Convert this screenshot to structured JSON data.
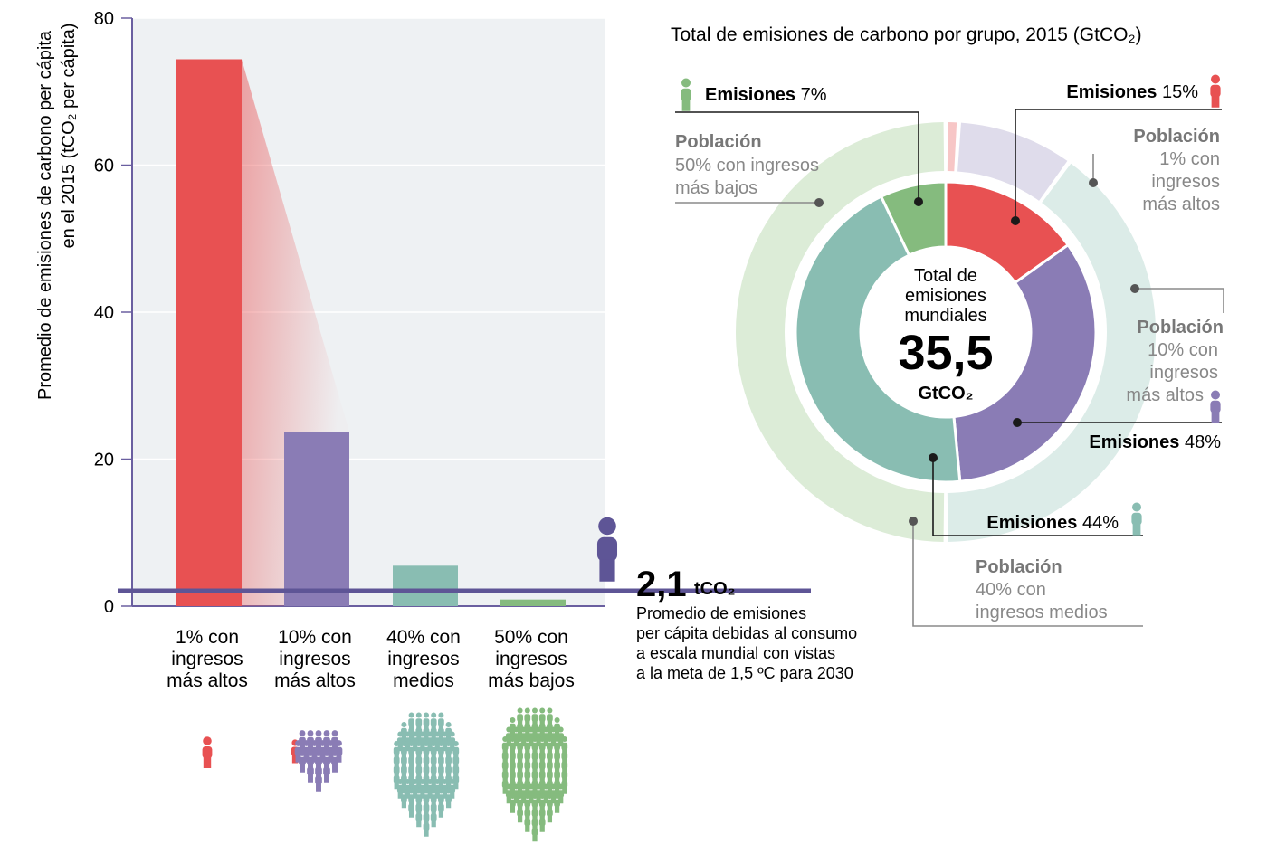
{
  "bar_chart": {
    "ylabel_line1": "Promedio de emisiones de carbono per cápita",
    "ylabel_line2": "en el 2015 (tCO₂ per cápita)",
    "ticks": [
      "0",
      "20",
      "40",
      "60",
      "80"
    ],
    "reference": {
      "value_text": "2,1",
      "unit": "tCO₂",
      "desc_lines": [
        "Promedio de emisiones",
        "per cápita debidas al consumo",
        "a escala mundial con vistas",
        "a la meta de 1,5 ºC para 2030"
      ]
    },
    "categories": [
      {
        "lines": [
          "1% con",
          "ingresos",
          "más altos"
        ]
      },
      {
        "lines": [
          "10% con",
          "ingresos",
          "más altos"
        ]
      },
      {
        "lines": [
          "40% con",
          "ingresos",
          "medios"
        ]
      },
      {
        "lines": [
          "50% con",
          "ingresos",
          "más bajos"
        ]
      }
    ]
  },
  "donut": {
    "title": "Total de emisiones de carbono por grupo, 2015 (GtCO₂)",
    "center_lines": [
      "Total de",
      "emisiones",
      "mundiales"
    ],
    "center_value": "35,5",
    "center_unit": "GtCO₂",
    "emisiones_word": "Emisiones",
    "poblacion_word": "Población",
    "emission_labels": {
      "bottom50": "7%",
      "top1": "15%",
      "top10": "48%",
      "middle40": "44%"
    },
    "population_labels": {
      "bottom50": [
        "50% con ingresos",
        "más bajos"
      ],
      "top1": [
        "1% con",
        "ingresos",
        "más altos"
      ],
      "top10": [
        "10% con",
        "ingresos",
        "más altos"
      ],
      "middle40": [
        "40% con",
        "ingresos medios"
      ]
    }
  },
  "colors": {
    "top1": "#e85152",
    "top10": "#8a7cb5",
    "middle40": "#89bdb2",
    "bottom50": "#85bb7e",
    "bg_panel": "#eef1f3"
  },
  "chart_data": [
    {
      "type": "bar",
      "title": "",
      "xlabel": "",
      "ylabel": "Promedio de emisiones de carbono per cápita en el 2015 (tCO₂ per cápita)",
      "categories": [
        "1% con ingresos más altos",
        "10% con ingresos más altos",
        "40% con ingresos medios",
        "50% con ingresos más bajos"
      ],
      "values": [
        74.4,
        23.7,
        5.5,
        0.9
      ],
      "ylim": [
        0,
        80
      ],
      "reference_line": 2.1
    },
    {
      "type": "pie",
      "title": "Total de emisiones de carbono por grupo, 2015 (GtCO₂)",
      "total": 35.5,
      "rings": [
        {
          "name": "Emisiones",
          "categories": [
            "1% con ingresos más altos",
            "10% con ingresos más altos",
            "40% con ingresos medios",
            "50% con ingresos más bajos"
          ],
          "values": [
            15,
            33,
            44,
            7
          ]
        },
        {
          "name": "Población",
          "categories": [
            "1% con ingresos más altos",
            "10% con ingresos más altos",
            "40% con ingresos medios",
            "50% con ingresos más bajos"
          ],
          "values": [
            1,
            9,
            40,
            50
          ]
        }
      ]
    }
  ]
}
